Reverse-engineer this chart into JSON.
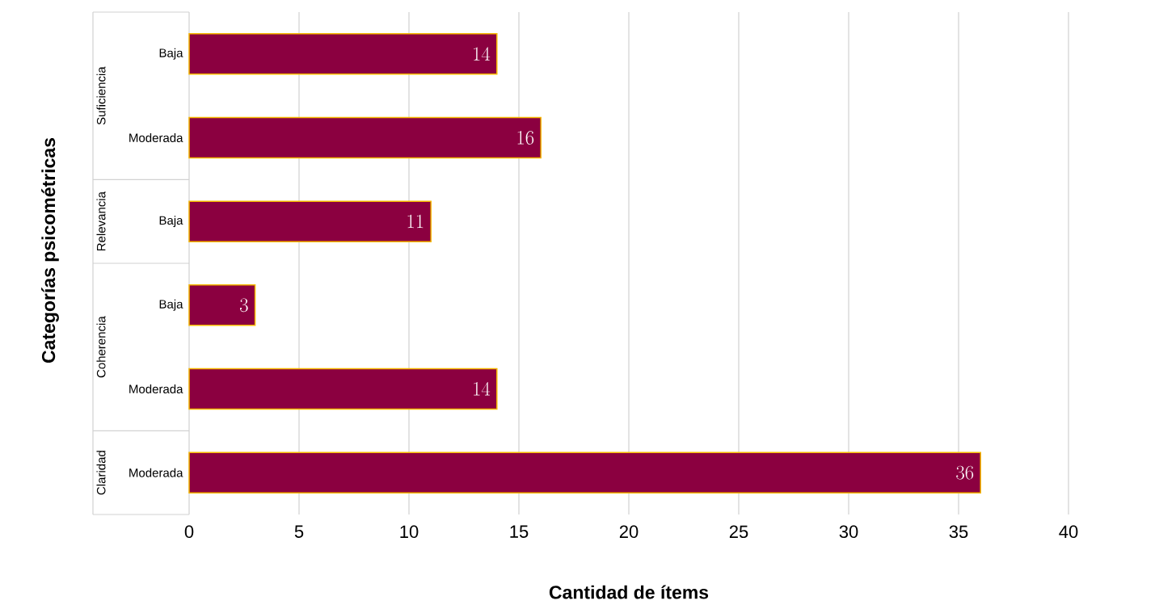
{
  "chart_data": {
    "type": "bar",
    "orientation": "horizontal",
    "xlabel": "Cantidad de ítems",
    "ylabel": "Categorías psicométricas",
    "categories": [
      "Baja",
      "Moderada",
      "Baja",
      "Baja",
      "Moderada",
      "Moderada"
    ],
    "values": [
      14,
      16,
      11,
      3,
      14,
      36
    ],
    "color": "#8b0040",
    "xlim": [
      0,
      40
    ],
    "xticks": [
      0,
      5,
      10,
      15,
      20,
      25,
      30,
      35,
      40
    ],
    "grid": "x",
    "data_labels": true,
    "annotations": [
      "Suficiencia",
      "Relevancia",
      "Coherencia",
      "Claridad"
    ]
  }
}
